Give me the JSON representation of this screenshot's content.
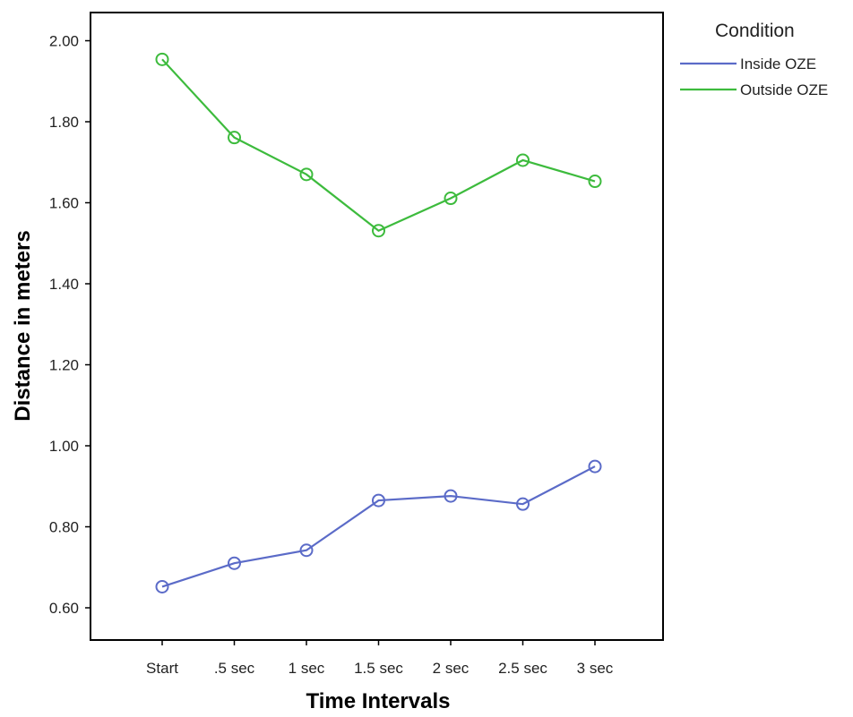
{
  "chart_data": {
    "type": "line",
    "xlabel": "Time Intervals",
    "ylabel": "Distance in meters",
    "categories": [
      "Start",
      ".5 sec",
      "1 sec",
      "1.5 sec",
      "2 sec",
      "2.5 sec",
      "3 sec"
    ],
    "ylim": [
      0.54,
      2.08
    ],
    "yticks": [
      "0.60",
      "0.80",
      "1.00",
      "1.20",
      "1.40",
      "1.60",
      "1.80",
      "2.00"
    ],
    "grid": false,
    "legend_title": "Condition",
    "legend_position": "top-right, outside plot",
    "marker": "open-circle",
    "series": [
      {
        "name": "Inside OZE",
        "color": "#5b6bc8",
        "values": [
          0.652,
          0.71,
          0.742,
          0.865,
          0.876,
          0.856,
          0.949
        ]
      },
      {
        "name": "Outside OZE",
        "color": "#3dbb3d",
        "values": [
          1.954,
          1.761,
          1.67,
          1.531,
          1.611,
          1.705,
          1.653
        ]
      }
    ]
  }
}
